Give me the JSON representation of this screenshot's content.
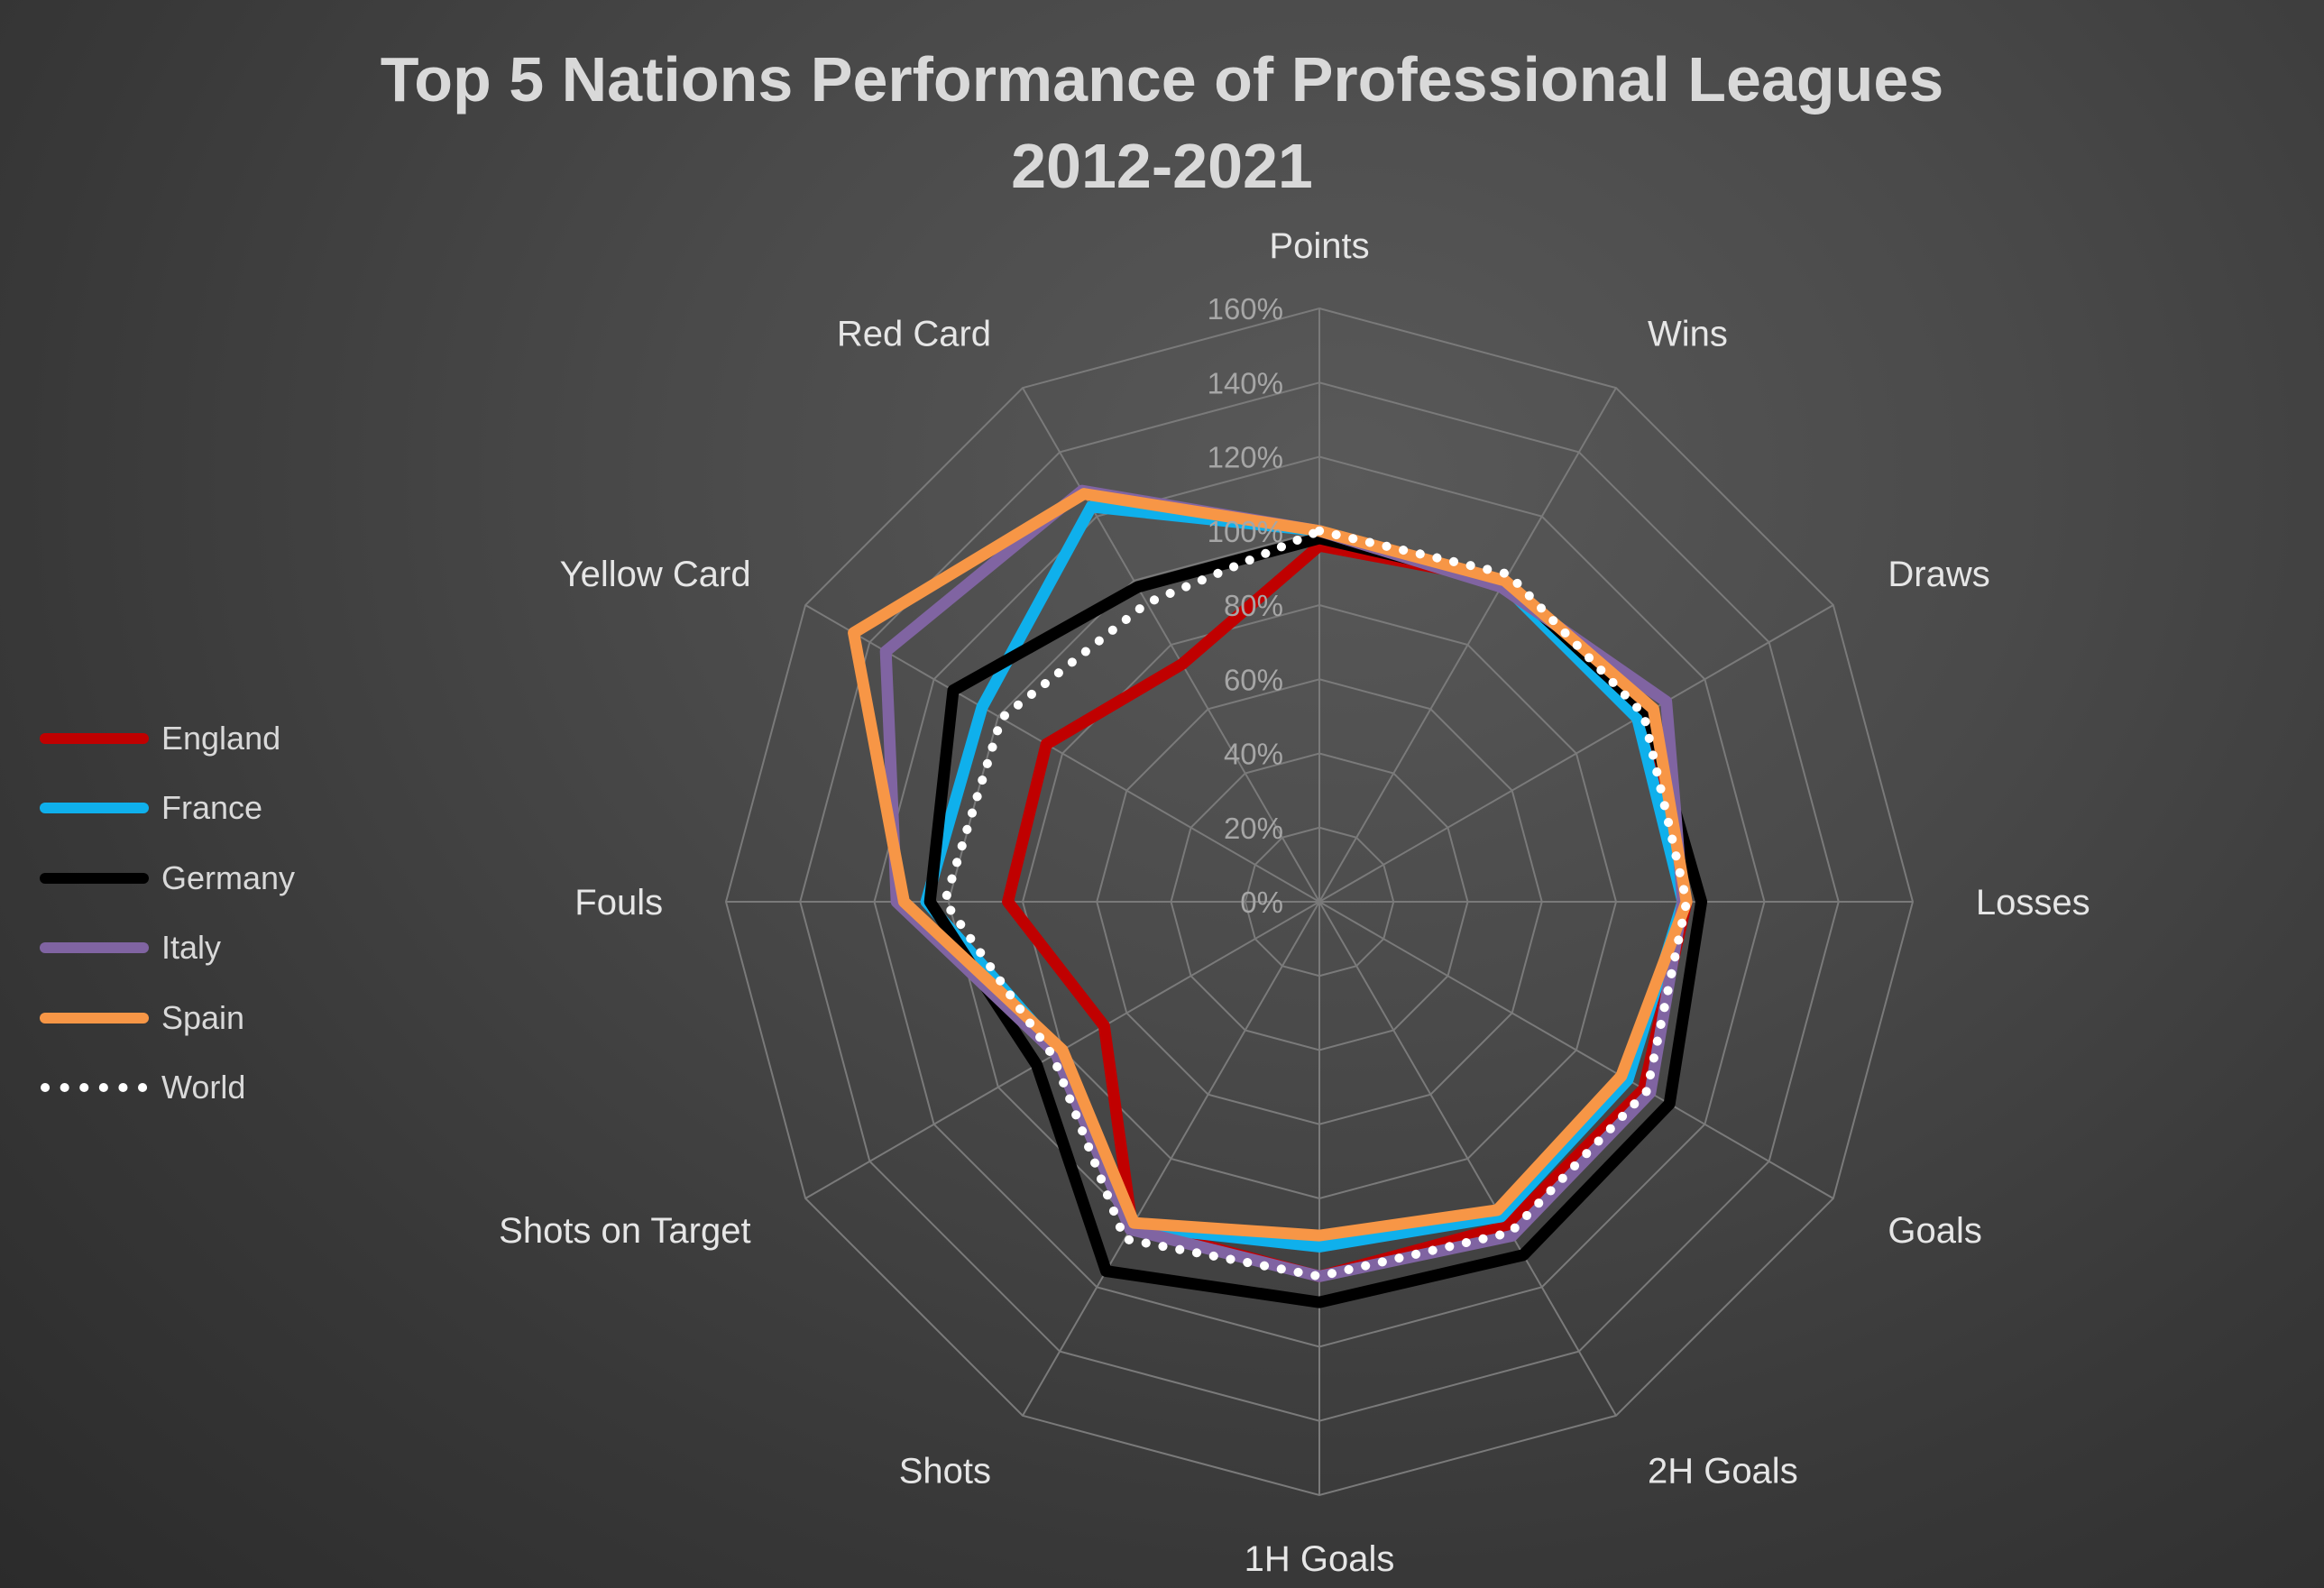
{
  "chart_data": {
    "type": "radar",
    "title_lines": [
      "Top 5 Nations Performance of Professional Leagues",
      "2012-2021"
    ],
    "categories": [
      "Points",
      "Wins",
      "Draws",
      "Losses",
      "Goals",
      "2H Goals",
      "1H Goals",
      "Shots",
      "Shots on Target",
      "Fouls",
      "Yellow Card",
      "Red Card"
    ],
    "rlim": [
      0,
      160
    ],
    "rticks": [
      0,
      20,
      40,
      60,
      80,
      100,
      120,
      140,
      160
    ],
    "rtick_labels": [
      "0%",
      "20%",
      "40%",
      "60%",
      "80%",
      "100%",
      "120%",
      "140%",
      "160%"
    ],
    "grid": true,
    "legend_position": "left",
    "series": [
      {
        "name": "England",
        "color": "#c00000",
        "style": "solid",
        "values": [
          96,
          100,
          102,
          99,
          101,
          101,
          101,
          101,
          67,
          84,
          85,
          74
        ]
      },
      {
        "name": "France",
        "color": "#0fb0ec",
        "style": "solid",
        "values": [
          100,
          99,
          99,
          98,
          96,
          98,
          93,
          101,
          81,
          106,
          105,
          123
        ]
      },
      {
        "name": "Germany",
        "color": "#000000",
        "style": "solid",
        "values": [
          98,
          100,
          102,
          103,
          109,
          110,
          108,
          115,
          88,
          105,
          114,
          98
        ]
      },
      {
        "name": "Italy",
        "color": "#8064a2",
        "style": "solid",
        "values": [
          100,
          98,
          108,
          98,
          103,
          104,
          101,
          102,
          82,
          114,
          135,
          128
        ]
      },
      {
        "name": "Spain",
        "color": "#f79646",
        "style": "solid",
        "values": [
          100,
          100,
          104,
          99,
          94,
          96,
          90,
          100,
          80,
          112,
          145,
          127
        ]
      },
      {
        "name": "World",
        "color": "#ffffff",
        "style": "dotted",
        "values": [
          100,
          102,
          101,
          99,
          102,
          103,
          101,
          105,
          83,
          101,
          99,
          93
        ]
      }
    ]
  }
}
